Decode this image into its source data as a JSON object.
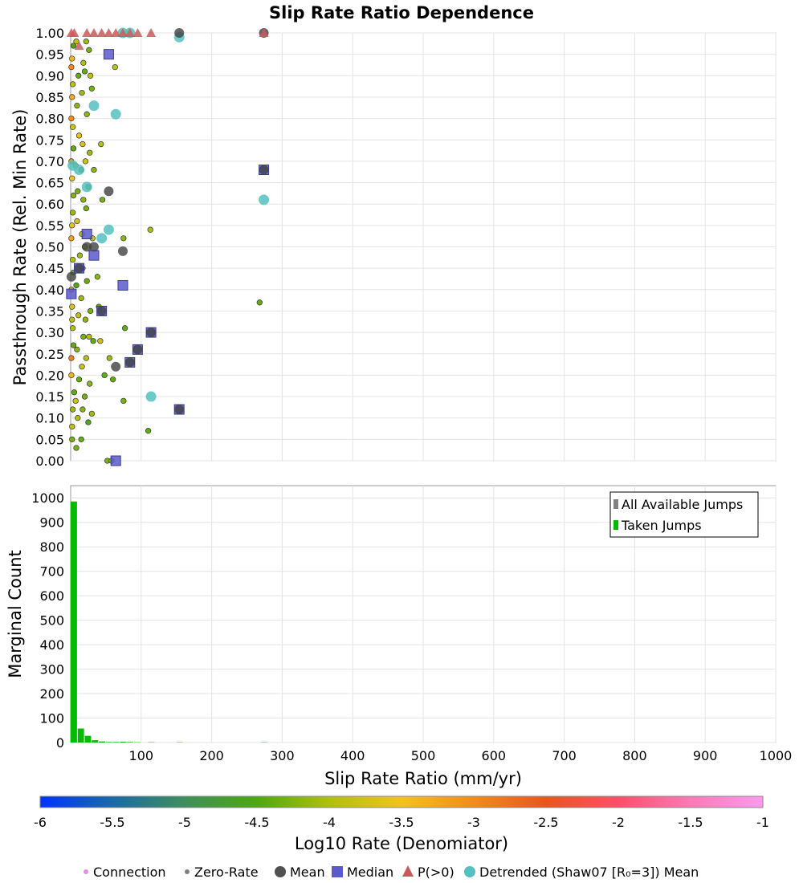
{
  "chart_data": [
    {
      "type": "scatter",
      "title": "Slip Rate Ratio Dependence",
      "ylabel": "Passthrough Rate (Rel. Min Rate)",
      "xlim": [
        0,
        1000
      ],
      "ylim": [
        0,
        1
      ],
      "grid": true,
      "y_ticks": [
        "0.00",
        "0.05",
        "0.10",
        "0.15",
        "0.20",
        "0.25",
        "0.30",
        "0.35",
        "0.40",
        "0.45",
        "0.50",
        "0.55",
        "0.60",
        "0.65",
        "0.70",
        "0.75",
        "0.80",
        "0.85",
        "0.90",
        "0.95",
        "1.00"
      ],
      "series": [
        {
          "name": "Connection",
          "note": "points colored by Log10 Rate (Denomiator)",
          "points": [
            [
              2,
              0.05,
              -4.3
            ],
            [
              3,
              0.12,
              -4.1
            ],
            [
              1,
              0.2,
              -3.4
            ],
            [
              4,
              0.27,
              -4.4
            ],
            [
              2,
              0.33,
              -3.9
            ],
            [
              1,
              0.4,
              -3.2
            ],
            [
              3,
              0.47,
              -4.0
            ],
            [
              2,
              0.55,
              -3.6
            ],
            [
              4,
              0.62,
              -4.2
            ],
            [
              1,
              0.7,
              -3.1
            ],
            [
              3,
              0.78,
              -3.8
            ],
            [
              2,
              0.85,
              -3.3
            ],
            [
              1,
              0.92,
              -3.0
            ],
            [
              4,
              0.97,
              -4.5
            ],
            [
              2,
              0.08,
              -3.9
            ],
            [
              5,
              0.16,
              -4.4
            ],
            [
              1,
              0.24,
              -2.9
            ],
            [
              3,
              0.31,
              -4.0
            ],
            [
              2,
              0.36,
              -3.7
            ],
            [
              4,
              0.44,
              -4.3
            ],
            [
              1,
              0.52,
              -3.2
            ],
            [
              3,
              0.58,
              -4.1
            ],
            [
              2,
              0.66,
              -3.5
            ],
            [
              4,
              0.73,
              -4.4
            ],
            [
              1,
              0.8,
              -3.0
            ],
            [
              3,
              0.88,
              -3.9
            ],
            [
              2,
              0.94,
              -3.4
            ],
            [
              8,
              0.03,
              -4.3
            ],
            [
              10,
              0.1,
              -4.0
            ],
            [
              7,
              0.14,
              -3.8
            ],
            [
              12,
              0.19,
              -4.4
            ],
            [
              9,
              0.26,
              -4.2
            ],
            [
              11,
              0.34,
              -3.9
            ],
            [
              8,
              0.41,
              -4.5
            ],
            [
              13,
              0.48,
              -4.1
            ],
            [
              9,
              0.56,
              -3.7
            ],
            [
              10,
              0.63,
              -4.3
            ],
            [
              7,
              0.69,
              -4.0
            ],
            [
              12,
              0.76,
              -3.6
            ],
            [
              9,
              0.83,
              -4.2
            ],
            [
              11,
              0.9,
              -4.4
            ],
            [
              8,
              0.98,
              -3.9
            ],
            [
              15,
              0.05,
              -4.4
            ],
            [
              17,
              0.12,
              -4.2
            ],
            [
              16,
              0.22,
              -3.8
            ],
            [
              18,
              0.29,
              -4.3
            ],
            [
              15,
              0.38,
              -4.1
            ],
            [
              17,
              0.45,
              -4.5
            ],
            [
              16,
              0.53,
              -3.9
            ],
            [
              18,
              0.61,
              -4.2
            ],
            [
              15,
              0.68,
              -4.4
            ],
            [
              17,
              0.74,
              -3.7
            ],
            [
              16,
              0.86,
              -4.1
            ],
            [
              18,
              0.93,
              -4.0
            ],
            [
              20,
              0.15,
              -4.3
            ],
            [
              22,
              0.24,
              -3.9
            ],
            [
              21,
              0.33,
              -4.2
            ],
            [
              23,
              0.42,
              -4.4
            ],
            [
              20,
              0.5,
              -4.0
            ],
            [
              22,
              0.59,
              -4.3
            ],
            [
              21,
              0.7,
              -3.8
            ],
            [
              23,
              0.81,
              -4.2
            ],
            [
              20,
              0.91,
              -4.4
            ],
            [
              22,
              0.98,
              -4.1
            ],
            [
              25,
              0.09,
              -4.5
            ],
            [
              27,
              0.18,
              -4.2
            ],
            [
              26,
              0.29,
              -4.0
            ],
            [
              28,
              0.35,
              -4.3
            ],
            [
              25,
              0.64,
              -4.4
            ],
            [
              27,
              0.72,
              -4.1
            ],
            [
              28,
              0.9,
              -3.9
            ],
            [
              26,
              0.96,
              -4.3
            ],
            [
              30,
              0.11,
              -4.1
            ],
            [
              32,
              0.28,
              -4.4
            ],
            [
              31,
              0.52,
              -3.8
            ],
            [
              33,
              0.68,
              -4.2
            ],
            [
              30,
              0.87,
              -4.3
            ],
            [
              40,
              0.36,
              -4.4
            ],
            [
              42,
              0.28,
              -3.8
            ],
            [
              38,
              0.43,
              -4.2
            ],
            [
              45,
              0.61,
              -4.3
            ],
            [
              43,
              0.74,
              -4.0
            ],
            [
              48,
              0.2,
              -4.4
            ],
            [
              52,
              0.0,
              -4.3
            ],
            [
              55,
              0.24,
              -4.1
            ],
            [
              58,
              0.0,
              -4.2
            ],
            [
              60,
              0.19,
              -4.4
            ],
            [
              63,
              0.92,
              -3.9
            ],
            [
              75,
              0.14,
              -4.3
            ],
            [
              77,
              0.31,
              -4.4
            ],
            [
              75,
              0.52,
              -4.2
            ],
            [
              110,
              0.07,
              -4.4
            ],
            [
              113,
              0.54,
              -4.0
            ],
            [
              268,
              0.37,
              -4.4
            ]
          ]
        },
        {
          "name": "Zero-Rate",
          "points": []
        },
        {
          "name": "Mean",
          "points": [
            [
              1,
              0.43
            ],
            [
              12,
              0.45
            ],
            [
              23,
              0.5
            ],
            [
              33,
              0.5
            ],
            [
              44,
              0.35
            ],
            [
              54,
              0.63
            ],
            [
              64,
              0.22
            ],
            [
              74,
              0.49
            ],
            [
              84,
              0.23
            ],
            [
              95,
              0.26
            ],
            [
              114,
              0.3
            ],
            [
              154,
              0.12
            ],
            [
              274,
              0.68
            ],
            [
              154,
              1.0
            ],
            [
              274,
              1.0
            ]
          ]
        },
        {
          "name": "Median",
          "points": [
            [
              1,
              0.39
            ],
            [
              12,
              0.45
            ],
            [
              23,
              0.53
            ],
            [
              33,
              0.48
            ],
            [
              44,
              0.35
            ],
            [
              54,
              0.95
            ],
            [
              64,
              0.0
            ],
            [
              74,
              0.41
            ],
            [
              84,
              0.23
            ],
            [
              95,
              0.26
            ],
            [
              114,
              0.3
            ],
            [
              154,
              0.12
            ],
            [
              274,
              0.68
            ]
          ]
        },
        {
          "name": "P(>0)",
          "points": [
            [
              1,
              1.0
            ],
            [
              5,
              1.0
            ],
            [
              12,
              0.97
            ],
            [
              23,
              1.0
            ],
            [
              33,
              1.0
            ],
            [
              44,
              1.0
            ],
            [
              54,
              1.0
            ],
            [
              64,
              1.0
            ],
            [
              74,
              1.0
            ],
            [
              84,
              1.0
            ],
            [
              95,
              1.0
            ],
            [
              114,
              1.0
            ],
            [
              274,
              1.0
            ]
          ]
        },
        {
          "name": "Detrended (Shaw07 [R₀=3]) Mean",
          "points": [
            [
              3,
              0.69
            ],
            [
              12,
              0.68
            ],
            [
              23,
              0.64
            ],
            [
              33,
              0.83
            ],
            [
              44,
              0.52
            ],
            [
              54,
              0.54
            ],
            [
              64,
              0.81
            ],
            [
              74,
              1.0
            ],
            [
              84,
              1.0
            ],
            [
              114,
              0.15
            ],
            [
              154,
              0.99
            ],
            [
              274,
              0.61
            ]
          ]
        }
      ]
    },
    {
      "type": "bar",
      "xlabel": "Slip Rate Ratio (mm/yr)",
      "ylabel": "Marginal Count",
      "xlim": [
        0,
        1000
      ],
      "ylim": [
        0,
        1050
      ],
      "grid": true,
      "x_ticks": [
        "100",
        "200",
        "300",
        "400",
        "500",
        "600",
        "700",
        "800",
        "900",
        "1000"
      ],
      "y_ticks": [
        "0",
        "100",
        "200",
        "300",
        "400",
        "500",
        "600",
        "700",
        "800",
        "900",
        "1000"
      ],
      "bin_width": 10,
      "legend": {
        "position": "top-right",
        "entries": [
          "All Available Jumps",
          "Taken Jumps"
        ]
      },
      "series": [
        {
          "name": "All Available Jumps",
          "color": "#808080",
          "bins": [
            [
              0,
              985
            ],
            [
              10,
              57
            ],
            [
              20,
              27
            ],
            [
              30,
              9
            ],
            [
              40,
              4
            ],
            [
              50,
              2
            ],
            [
              60,
              2
            ],
            [
              70,
              3
            ],
            [
              80,
              2
            ],
            [
              90,
              1
            ],
            [
              110,
              1
            ],
            [
              150,
              1
            ],
            [
              270,
              1
            ]
          ]
        },
        {
          "name": "Taken Jumps",
          "color": "#00bb00",
          "bins": [
            [
              0,
              985
            ],
            [
              10,
              57
            ],
            [
              20,
              27
            ],
            [
              30,
              9
            ],
            [
              40,
              4
            ],
            [
              50,
              2
            ],
            [
              60,
              2
            ],
            [
              70,
              3
            ],
            [
              80,
              2
            ],
            [
              90,
              1
            ],
            [
              110,
              1
            ],
            [
              150,
              1
            ],
            [
              270,
              1
            ]
          ]
        }
      ]
    },
    {
      "type": "colorbar",
      "label": "Log10 Rate (Denomiator)",
      "range": [
        -6,
        -1
      ],
      "ticks": [
        "-6",
        "-5.5",
        "-5",
        "-4.5",
        "-4",
        "-3.5",
        "-3",
        "-2.5",
        "-2",
        "-1.5",
        "-1"
      ],
      "colors": [
        "#0033ff",
        "#1a6aa8",
        "#3e8f5c",
        "#4ea80e",
        "#b0c010",
        "#f2c21f",
        "#f28c1c",
        "#e8561e",
        "#ff4e6a",
        "#ff7ab6",
        "#ff99ee"
      ]
    }
  ],
  "legend_bottom": [
    {
      "label": "Connection",
      "marker": "dot",
      "color": "#ee88ee"
    },
    {
      "label": "Zero-Rate",
      "marker": "dot",
      "color": "#808080"
    },
    {
      "label": "Mean",
      "marker": "circle",
      "color": "#505050"
    },
    {
      "label": "Median",
      "marker": "square",
      "color": "#5a5acc"
    },
    {
      "label": "P(>0)",
      "marker": "triangle",
      "color": "#c85a5a"
    },
    {
      "label": "Detrended (Shaw07 [R₀=3]) Mean",
      "marker": "circle",
      "color": "#55c0c0"
    }
  ]
}
